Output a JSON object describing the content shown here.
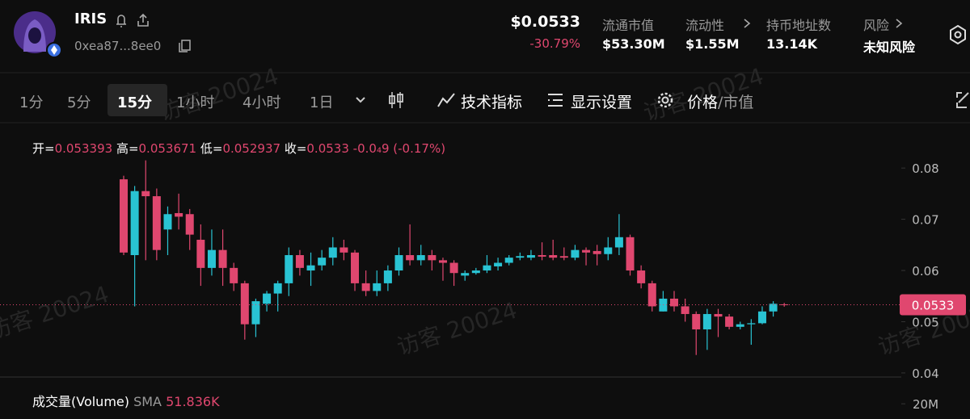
{
  "header": {
    "name": "IRIS",
    "address": "0xea87...8ee0",
    "price": "$0.0533",
    "change": "-30.79%",
    "stats": [
      {
        "label": "流通市值",
        "value": "$53.30M"
      },
      {
        "label": "流动性",
        "value": "$1.55M"
      },
      {
        "label": "持币地址数",
        "value": "13.14K"
      },
      {
        "label": "风险",
        "value": "未知风险"
      }
    ]
  },
  "toolbar": {
    "intervals": [
      "1分",
      "5分",
      "15分",
      "1小时",
      "4小时",
      "1日"
    ],
    "selected": 2,
    "indicators": "技术指标",
    "display": "显示设置",
    "price": "价格",
    "market_cap": "/市值"
  },
  "watermark": "访客 20024",
  "chart_data": {
    "type": "candlestick",
    "ohlc_legend": {
      "open_label": "开=",
      "high_label": "高=",
      "low_label": "低=",
      "close_label": "收=",
      "change": "-0.0₄9",
      "change_pct": "(-0.17%)"
    },
    "open": [
      0.0778,
      0.063,
      0.0755,
      0.0745,
      0.068,
      0.0712,
      0.071,
      0.066,
      0.0605,
      0.064,
      0.0605,
      0.0575,
      0.0495,
      0.0535,
      0.0555,
      0.0575,
      0.063,
      0.06,
      0.061,
      0.0625,
      0.0645,
      0.0635,
      0.0575,
      0.056,
      0.0575,
      0.06,
      0.063,
      0.062,
      0.063,
      0.062,
      0.0615,
      0.059,
      0.0595,
      0.06,
      0.0608,
      0.0615,
      0.0625,
      0.0625,
      0.063,
      0.063,
      0.0628,
      0.0625,
      0.064,
      0.0638,
      0.0632,
      0.0645,
      0.0665,
      0.06,
      0.0575,
      0.052,
      0.0545,
      0.053,
      0.0515,
      0.0485,
      0.0515,
      0.051,
      0.049,
      0.0495,
      0.0497,
      0.052,
      0.053393
    ],
    "high": [
      0.0785,
      0.0765,
      0.0815,
      0.076,
      0.0725,
      0.075,
      0.072,
      0.069,
      0.068,
      0.068,
      0.0615,
      0.058,
      0.0545,
      0.056,
      0.058,
      0.0645,
      0.064,
      0.0635,
      0.064,
      0.0665,
      0.066,
      0.064,
      0.06,
      0.06,
      0.061,
      0.0645,
      0.069,
      0.065,
      0.064,
      0.0625,
      0.062,
      0.06,
      0.0605,
      0.063,
      0.0625,
      0.063,
      0.0635,
      0.064,
      0.0655,
      0.066,
      0.0645,
      0.065,
      0.0645,
      0.065,
      0.0665,
      0.071,
      0.067,
      0.061,
      0.058,
      0.056,
      0.056,
      0.0545,
      0.052,
      0.0525,
      0.0525,
      0.0515,
      0.05,
      0.0505,
      0.053,
      0.054,
      0.053671
    ],
    "low": [
      0.063,
      0.053,
      0.062,
      0.062,
      0.063,
      0.068,
      0.064,
      0.057,
      0.059,
      0.057,
      0.056,
      0.0465,
      0.047,
      0.052,
      0.052,
      0.055,
      0.059,
      0.057,
      0.06,
      0.061,
      0.062,
      0.056,
      0.055,
      0.055,
      0.056,
      0.059,
      0.061,
      0.061,
      0.06,
      0.058,
      0.057,
      0.058,
      0.0592,
      0.0595,
      0.06,
      0.061,
      0.062,
      0.062,
      0.062,
      0.062,
      0.062,
      0.062,
      0.061,
      0.061,
      0.062,
      0.063,
      0.059,
      0.0565,
      0.052,
      0.052,
      0.052,
      0.05,
      0.0435,
      0.0445,
      0.047,
      0.0485,
      0.0485,
      0.0455,
      0.0495,
      0.051,
      0.052937
    ],
    "close": [
      0.0635,
      0.0755,
      0.0745,
      0.064,
      0.071,
      0.0705,
      0.067,
      0.0605,
      0.064,
      0.0605,
      0.0575,
      0.0495,
      0.054,
      0.0555,
      0.0575,
      0.063,
      0.0605,
      0.061,
      0.0625,
      0.0645,
      0.0635,
      0.0575,
      0.056,
      0.0575,
      0.06,
      0.063,
      0.062,
      0.063,
      0.062,
      0.0615,
      0.0595,
      0.0595,
      0.06,
      0.061,
      0.0615,
      0.0625,
      0.0628,
      0.063,
      0.0627,
      0.0625,
      0.0625,
      0.064,
      0.0635,
      0.0632,
      0.0645,
      0.0665,
      0.06,
      0.0575,
      0.053,
      0.0545,
      0.053,
      0.0515,
      0.0485,
      0.0515,
      0.051,
      0.049,
      0.0495,
      0.0497,
      0.052,
      0.0535,
      0.0533
    ],
    "up_color": "#29c3d3",
    "down_color": "#e0476f",
    "ylim": [
      0.0392,
      0.0868
    ],
    "yticks": [
      0.04,
      0.05,
      0.06,
      0.07,
      0.08
    ],
    "last_price": 0.0533
  },
  "volume": {
    "title": "成交量(Volume)",
    "sma": "SMA",
    "sma_value": "51.836K",
    "ylim": [
      0,
      52000000
    ],
    "yticks": [
      {
        "value": 20000000,
        "label": "20M"
      }
    ]
  }
}
